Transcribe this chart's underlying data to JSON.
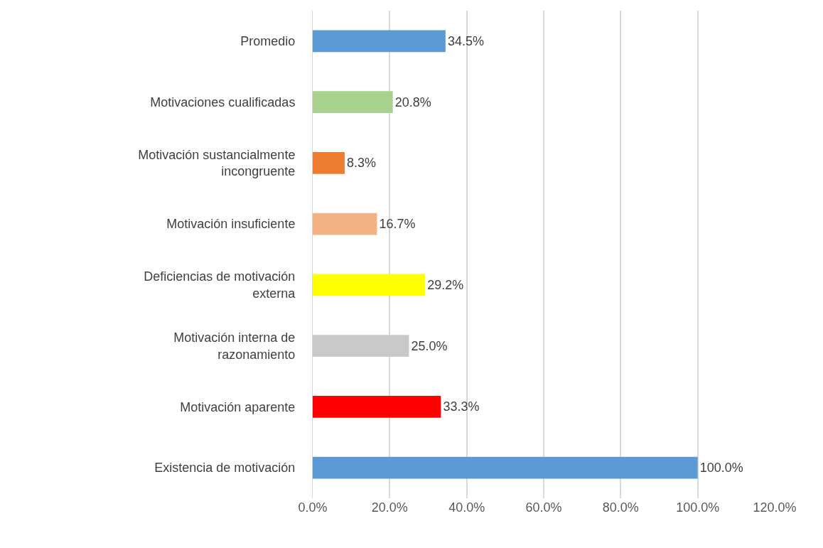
{
  "chart_data": {
    "type": "bar",
    "orientation": "horizontal",
    "categories": [
      "Promedio",
      "Motivaciones cualificadas",
      "Motivación sustancialmente incongruente",
      "Motivación insuficiente",
      "Deficiencias de motivación externa",
      "Motivación interna de razonamiento",
      "Motivación aparente",
      "Existencia de motivación"
    ],
    "values": [
      34.5,
      20.8,
      8.3,
      16.7,
      29.2,
      25.0,
      33.3,
      100.0
    ],
    "colors": [
      "#5b9bd5",
      "#a9d18e",
      "#ed7d31",
      "#f4b183",
      "#ffff00",
      "#c9c9c9",
      "#ff0000",
      "#5b9bd5"
    ],
    "value_labels": [
      "34.5%",
      "20.8%",
      "8.3%",
      "16.7%",
      "29.2%",
      "25.0%",
      "33.3%",
      "100.0%"
    ],
    "xlim": [
      0,
      120
    ],
    "xticks": [
      {
        "value": 0,
        "label": "0.0%"
      },
      {
        "value": 20,
        "label": "20.0%"
      },
      {
        "value": 40,
        "label": "40.0%"
      },
      {
        "value": 60,
        "label": "60.0%"
      },
      {
        "value": 80,
        "label": "80.0%"
      },
      {
        "value": 100,
        "label": "100.0%"
      },
      {
        "value": 120,
        "label": "120.0%"
      }
    ],
    "grid": "x",
    "legend": false
  }
}
